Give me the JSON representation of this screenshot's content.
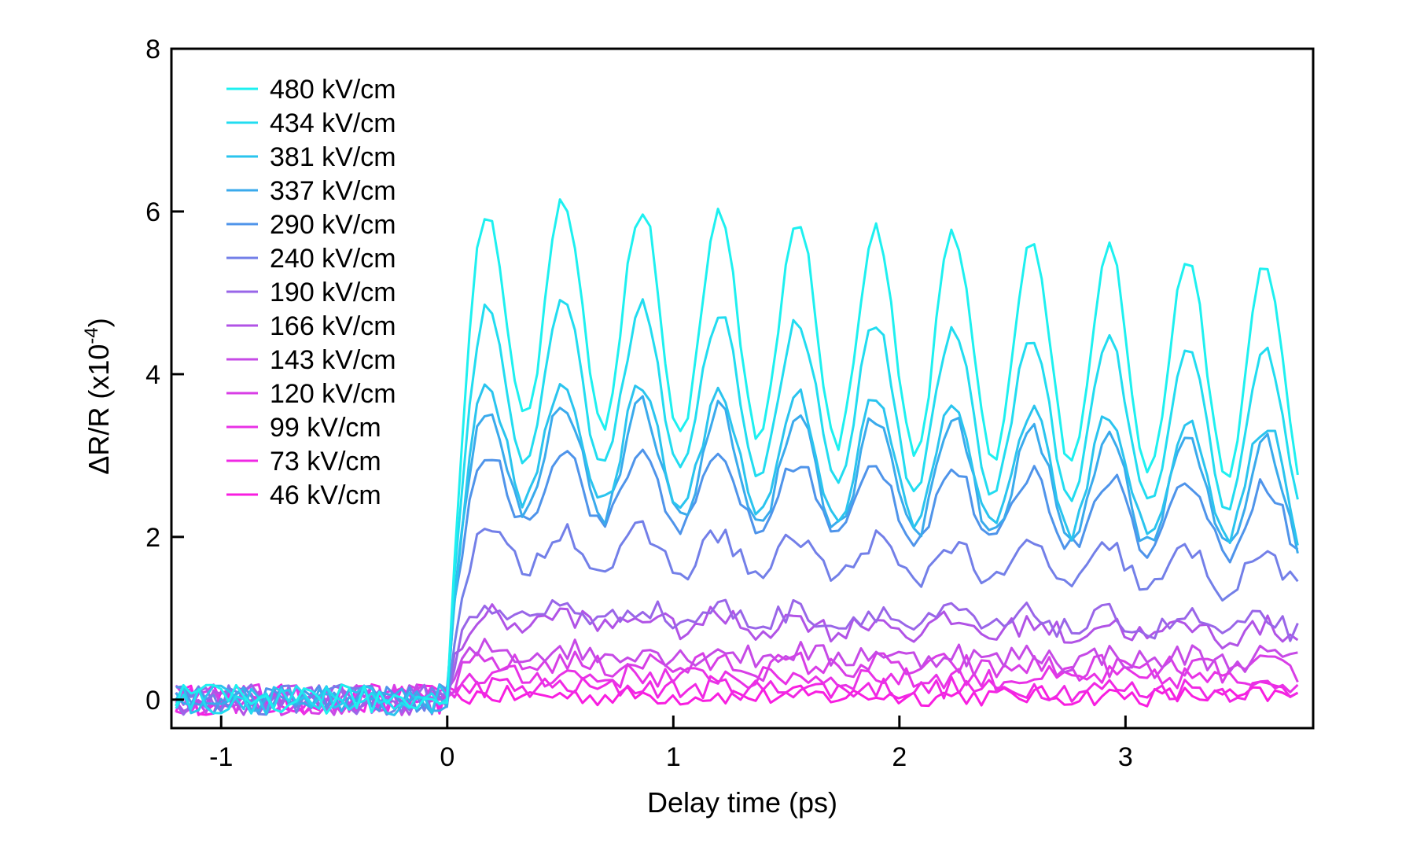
{
  "chart_data": {
    "type": "line",
    "title": "",
    "xlabel": "Delay time (ps)",
    "ylabel": "ΔR/R (x10",
    "ylabel_exponent": "-4",
    "ylabel_suffix": ")",
    "xlim": [
      -1.22,
      3.83
    ],
    "ylim": [
      -0.35,
      8.0
    ],
    "xticks": [
      -1,
      0,
      1,
      2,
      3
    ],
    "xtick_labels": [
      "-1",
      "0",
      "1",
      "2",
      "3"
    ],
    "yticks": [
      0,
      2,
      4,
      6,
      8
    ],
    "ytick_labels": [
      "0",
      "2",
      "4",
      "6",
      "8"
    ],
    "grid": false,
    "legend_position": "top-left",
    "x_start": -1.2,
    "x_step": 0.0333,
    "n_points": 150,
    "onset_time": 0.0,
    "oscillation_period_ps": 0.345,
    "series": [
      {
        "name": "480 kV/cm",
        "color": "#1ef0f0",
        "level": 4.9,
        "amplitude": 1.35,
        "noise": 0.1
      },
      {
        "name": "434 kV/cm",
        "color": "#22dcf0",
        "level": 4.0,
        "amplitude": 1.0,
        "noise": 0.1
      },
      {
        "name": "381 kV/cm",
        "color": "#2ac4ee",
        "level": 3.25,
        "amplitude": 0.75,
        "noise": 0.12
      },
      {
        "name": "337 kV/cm",
        "color": "#3aaaec",
        "level": 3.05,
        "amplitude": 0.7,
        "noise": 0.12
      },
      {
        "name": "290 kV/cm",
        "color": "#4f94ea",
        "level": 2.7,
        "amplitude": 0.45,
        "noise": 0.12
      },
      {
        "name": "240 kV/cm",
        "color": "#737fe8",
        "level": 1.9,
        "amplitude": 0.25,
        "noise": 0.14
      },
      {
        "name": "190 kV/cm",
        "color": "#9966e8",
        "level": 1.1,
        "amplitude": 0.1,
        "noise": 0.14
      },
      {
        "name": "166 kV/cm",
        "color": "#b153e6",
        "level": 1.0,
        "amplitude": 0.08,
        "noise": 0.14
      },
      {
        "name": "143 kV/cm",
        "color": "#c64ae6",
        "level": 0.6,
        "amplitude": 0.05,
        "noise": 0.15
      },
      {
        "name": "120 kV/cm",
        "color": "#d83ee6",
        "level": 0.45,
        "amplitude": 0.04,
        "noise": 0.15
      },
      {
        "name": "99 kV/cm",
        "color": "#e832e6",
        "level": 0.3,
        "amplitude": 0.03,
        "noise": 0.15
      },
      {
        "name": "73 kV/cm",
        "color": "#f028e4",
        "level": 0.15,
        "amplitude": 0.02,
        "noise": 0.14
      },
      {
        "name": "46 kV/cm",
        "color": "#f81ee0",
        "level": 0.05,
        "amplitude": 0.01,
        "noise": 0.12
      }
    ]
  }
}
